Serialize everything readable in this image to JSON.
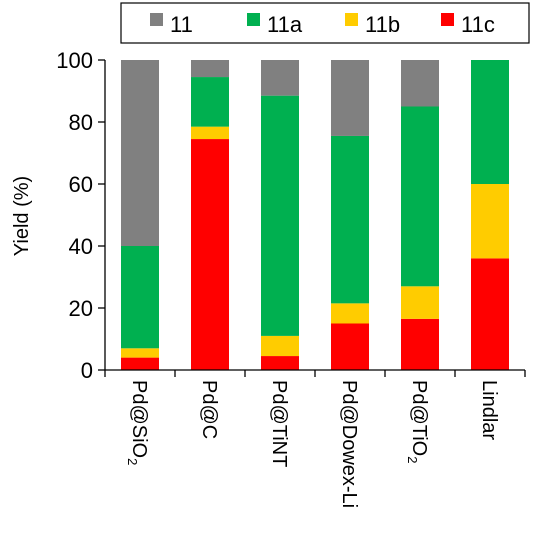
{
  "chart_data": {
    "type": "bar",
    "stacked": true,
    "orientation": "vertical",
    "categories": [
      "Pd@SiO2",
      "Pd@C",
      "Pd@TiNT",
      "Pd@Dowex-Li",
      "Pd@TiO2",
      "Lindlar"
    ],
    "category_labels": [
      {
        "main": "Pd@SiO",
        "sub": "2"
      },
      {
        "main": "Pd@C",
        "sub": ""
      },
      {
        "main": "Pd@TiNT",
        "sub": ""
      },
      {
        "main": "Pd@Dowex-Li",
        "sub": ""
      },
      {
        "main": "Pd@TiO",
        "sub": "2"
      },
      {
        "main": "Lindlar",
        "sub": ""
      }
    ],
    "series": [
      {
        "name": "11c",
        "color": "#ff0000",
        "values": [
          4,
          74.5,
          4.5,
          15,
          16.5,
          36
        ]
      },
      {
        "name": "11b",
        "color": "#ffcc00",
        "values": [
          3,
          4,
          6.5,
          6.5,
          10.5,
          24
        ]
      },
      {
        "name": "11a",
        "color": "#00b050",
        "values": [
          33,
          16,
          77.5,
          54,
          58,
          40
        ]
      },
      {
        "name": "11",
        "color": "#808080",
        "values": [
          60,
          5.5,
          11.5,
          24.5,
          15,
          0
        ]
      }
    ],
    "legend_order": [
      "11",
      "11a",
      "11b",
      "11c"
    ],
    "legend_position": "top",
    "title": "",
    "xlabel": "",
    "ylabel": "Yield (%)",
    "ylim": [
      0,
      100
    ],
    "yticks": [
      0,
      20,
      40,
      60,
      80,
      100
    ],
    "grid": false
  }
}
